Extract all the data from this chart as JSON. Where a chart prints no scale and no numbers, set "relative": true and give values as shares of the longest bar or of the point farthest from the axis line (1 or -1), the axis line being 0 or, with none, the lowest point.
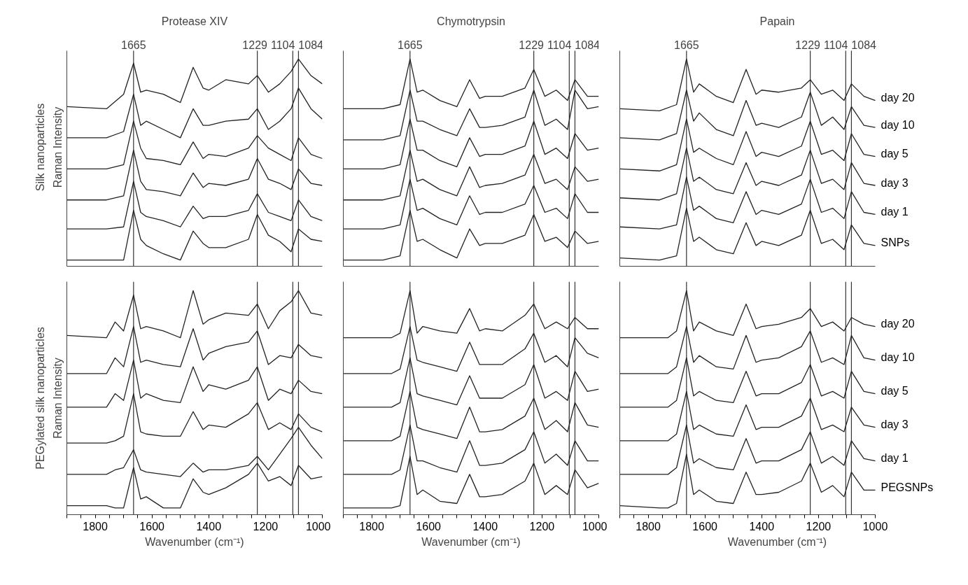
{
  "chart_data": [
    {
      "type": "line",
      "relative": true,
      "title": "Protease XIV",
      "ylabel": "Raman Intensity",
      "annotations": [
        "Silk nanoparticles"
      ],
      "xlim": [
        1900,
        1000
      ],
      "tick_labels": false,
      "line_style": "solid",
      "x": [
        1900,
        1760,
        1700,
        1665,
        1640,
        1620,
        1560,
        1500,
        1455,
        1420,
        1400,
        1340,
        1260,
        1229,
        1190,
        1150,
        1110,
        1084,
        1040,
        1000
      ],
      "ref_lines": [
        {
          "axis": "x",
          "value": 1665,
          "label": "1665"
        },
        {
          "axis": "x",
          "value": 1229,
          "label": "1229"
        },
        {
          "axis": "x",
          "value": 1104,
          "label": "1104"
        },
        {
          "axis": "x",
          "value": 1084,
          "label": "1084"
        }
      ],
      "series": [
        {
          "color": "#222222",
          "values": [
            0.77,
            0.76,
            0.83,
            0.98,
            0.84,
            0.85,
            0.83,
            0.79,
            0.96,
            0.86,
            0.85,
            0.9,
            0.88,
            0.92,
            0.84,
            0.88,
            0.94,
            1.0,
            0.92,
            0.88
          ]
        },
        {
          "color": "#222222",
          "values": [
            0.62,
            0.62,
            0.65,
            0.83,
            0.68,
            0.7,
            0.66,
            0.62,
            0.76,
            0.68,
            0.68,
            0.7,
            0.71,
            0.76,
            0.66,
            0.7,
            0.76,
            0.86,
            0.76,
            0.71
          ]
        },
        {
          "color": "#222222",
          "values": [
            0.47,
            0.47,
            0.49,
            0.7,
            0.57,
            0.52,
            0.51,
            0.49,
            0.6,
            0.52,
            0.54,
            0.53,
            0.57,
            0.63,
            0.57,
            0.54,
            0.51,
            0.62,
            0.54,
            0.52
          ]
        },
        {
          "color": "#222222",
          "values": [
            0.32,
            0.32,
            0.34,
            0.56,
            0.41,
            0.37,
            0.36,
            0.34,
            0.45,
            0.38,
            0.4,
            0.39,
            0.42,
            0.52,
            0.42,
            0.4,
            0.37,
            0.47,
            0.4,
            0.39
          ]
        },
        {
          "color": "#222222",
          "values": [
            0.18,
            0.18,
            0.19,
            0.41,
            0.26,
            0.24,
            0.22,
            0.19,
            0.29,
            0.23,
            0.24,
            0.24,
            0.27,
            0.35,
            0.26,
            0.24,
            0.22,
            0.32,
            0.24,
            0.22
          ]
        },
        {
          "color": "#222222",
          "values": [
            0.03,
            0.03,
            0.03,
            0.27,
            0.13,
            0.1,
            0.06,
            0.03,
            0.17,
            0.11,
            0.09,
            0.09,
            0.13,
            0.25,
            0.15,
            0.12,
            0.07,
            0.18,
            0.13,
            0.12
          ]
        }
      ]
    },
    {
      "type": "line",
      "relative": true,
      "title": "Chymotrypsin",
      "xlim": [
        1900,
        1000
      ],
      "tick_labels": false,
      "line_style": "solid",
      "x": [
        1900,
        1760,
        1700,
        1665,
        1640,
        1620,
        1560,
        1500,
        1455,
        1420,
        1400,
        1340,
        1260,
        1229,
        1190,
        1150,
        1110,
        1084,
        1040,
        1000
      ],
      "ref_lines": [
        {
          "axis": "x",
          "value": 1665,
          "label": "1665"
        },
        {
          "axis": "x",
          "value": 1229,
          "label": "1229"
        },
        {
          "axis": "x",
          "value": 1104,
          "label": "1104"
        },
        {
          "axis": "x",
          "value": 1084,
          "label": "1084"
        }
      ],
      "series": [
        {
          "color": "#222222",
          "values": [
            0.76,
            0.76,
            0.78,
            1.0,
            0.84,
            0.85,
            0.8,
            0.77,
            0.9,
            0.81,
            0.82,
            0.82,
            0.86,
            0.95,
            0.82,
            0.85,
            0.8,
            0.9,
            0.82,
            0.82
          ]
        },
        {
          "color": "#222222",
          "values": [
            0.61,
            0.61,
            0.63,
            0.85,
            0.7,
            0.7,
            0.66,
            0.63,
            0.76,
            0.67,
            0.67,
            0.68,
            0.72,
            0.85,
            0.68,
            0.71,
            0.66,
            0.85,
            0.76,
            0.77
          ]
        },
        {
          "color": "#222222",
          "values": [
            0.47,
            0.47,
            0.49,
            0.71,
            0.56,
            0.56,
            0.51,
            0.48,
            0.62,
            0.53,
            0.54,
            0.54,
            0.58,
            0.7,
            0.54,
            0.57,
            0.52,
            0.64,
            0.56,
            0.57
          ]
        },
        {
          "color": "#222222",
          "values": [
            0.32,
            0.32,
            0.34,
            0.56,
            0.41,
            0.42,
            0.37,
            0.34,
            0.48,
            0.38,
            0.39,
            0.4,
            0.44,
            0.54,
            0.4,
            0.42,
            0.37,
            0.48,
            0.41,
            0.42
          ]
        },
        {
          "color": "#222222",
          "values": [
            0.18,
            0.18,
            0.2,
            0.42,
            0.27,
            0.28,
            0.23,
            0.2,
            0.34,
            0.25,
            0.26,
            0.26,
            0.3,
            0.39,
            0.26,
            0.28,
            0.23,
            0.35,
            0.26,
            0.26
          ]
        },
        {
          "color": "#222222",
          "values": [
            0.03,
            0.03,
            0.05,
            0.27,
            0.12,
            0.13,
            0.08,
            0.04,
            0.18,
            0.1,
            0.11,
            0.11,
            0.15,
            0.25,
            0.12,
            0.14,
            0.09,
            0.17,
            0.11,
            0.12
          ]
        }
      ]
    },
    {
      "type": "line",
      "relative": true,
      "title": "Papain",
      "xlim": [
        1900,
        1000
      ],
      "tick_labels": false,
      "line_style": "solid",
      "x": [
        1900,
        1760,
        1700,
        1665,
        1640,
        1620,
        1560,
        1500,
        1455,
        1420,
        1400,
        1340,
        1260,
        1229,
        1190,
        1150,
        1110,
        1084,
        1040,
        1000
      ],
      "ref_lines": [
        {
          "axis": "x",
          "value": 1665,
          "label": "1665"
        },
        {
          "axis": "x",
          "value": 1229,
          "label": "1229"
        },
        {
          "axis": "x",
          "value": 1104,
          "label": "1104"
        },
        {
          "axis": "x",
          "value": 1084,
          "label": "1084"
        }
      ],
      "series": [
        {
          "name": "day 20",
          "color": "#222222",
          "values": [
            0.76,
            0.75,
            0.78,
            1.0,
            0.84,
            0.88,
            0.82,
            0.79,
            0.95,
            0.83,
            0.85,
            0.84,
            0.86,
            0.9,
            0.83,
            0.85,
            0.8,
            0.88,
            0.82,
            0.8
          ]
        },
        {
          "name": "day 10",
          "color": "#222222",
          "values": [
            0.62,
            0.61,
            0.64,
            0.85,
            0.7,
            0.74,
            0.66,
            0.63,
            0.8,
            0.68,
            0.69,
            0.67,
            0.72,
            0.84,
            0.68,
            0.72,
            0.66,
            0.77,
            0.68,
            0.67
          ]
        },
        {
          "name": "day 5",
          "color": "#222222",
          "values": [
            0.47,
            0.46,
            0.49,
            0.71,
            0.55,
            0.57,
            0.52,
            0.49,
            0.65,
            0.53,
            0.55,
            0.53,
            0.58,
            0.7,
            0.54,
            0.56,
            0.51,
            0.64,
            0.54,
            0.53
          ]
        },
        {
          "name": "day 3",
          "color": "#222222",
          "values": [
            0.33,
            0.32,
            0.35,
            0.57,
            0.41,
            0.43,
            0.37,
            0.35,
            0.5,
            0.39,
            0.41,
            0.39,
            0.44,
            0.56,
            0.4,
            0.42,
            0.37,
            0.5,
            0.4,
            0.39
          ]
        },
        {
          "name": "day 1",
          "color": "#222222",
          "values": [
            0.19,
            0.18,
            0.2,
            0.43,
            0.27,
            0.29,
            0.23,
            0.21,
            0.36,
            0.25,
            0.27,
            0.25,
            0.3,
            0.42,
            0.26,
            0.28,
            0.23,
            0.36,
            0.26,
            0.25
          ]
        },
        {
          "name": "SNPs",
          "color": "#222222",
          "values": [
            0.04,
            0.03,
            0.05,
            0.28,
            0.12,
            0.14,
            0.08,
            0.06,
            0.21,
            0.1,
            0.12,
            0.1,
            0.15,
            0.27,
            0.11,
            0.13,
            0.08,
            0.2,
            0.11,
            0.1
          ]
        }
      ]
    },
    {
      "type": "line",
      "relative": true,
      "ylabel": "Raman Intensity",
      "xlabel": "Wavenumber (cm⁻¹)",
      "annotations": [
        "PEGylated silk nanoparticles"
      ],
      "xlim": [
        1900,
        1000
      ],
      "tick_labels": "x",
      "line_style": "solid",
      "xticks": [
        {
          "value": 1900,
          "label": null
        },
        {
          "value": 1850,
          "label": null
        },
        1800,
        {
          "value": 1750,
          "label": null
        },
        {
          "value": 1700,
          "label": null
        },
        {
          "value": 1650,
          "label": null
        },
        1600,
        {
          "value": 1550,
          "label": null
        },
        {
          "value": 1500,
          "label": null
        },
        {
          "value": 1450,
          "label": null
        },
        1400,
        {
          "value": 1350,
          "label": null
        },
        {
          "value": 1300,
          "label": null
        },
        {
          "value": 1250,
          "label": null
        },
        1200,
        {
          "value": 1150,
          "label": null
        },
        {
          "value": 1100,
          "label": null
        },
        {
          "value": 1050,
          "label": null
        },
        1000
      ],
      "x": [
        1900,
        1760,
        1730,
        1700,
        1665,
        1640,
        1620,
        1560,
        1500,
        1455,
        1420,
        1400,
        1340,
        1260,
        1229,
        1190,
        1150,
        1110,
        1084,
        1040,
        1000
      ],
      "ref_lines": [
        {
          "axis": "x",
          "value": 1665,
          "label": null
        },
        {
          "axis": "x",
          "value": 1229,
          "label": null
        },
        {
          "axis": "x",
          "value": 1104,
          "label": null
        },
        {
          "axis": "x",
          "value": 1084,
          "label": null
        }
      ],
      "series": [
        {
          "color": "#222222",
          "values": [
            0.8,
            0.79,
            0.86,
            0.82,
            0.98,
            0.83,
            0.84,
            0.82,
            0.79,
            1.0,
            0.85,
            0.87,
            0.9,
            0.89,
            0.94,
            0.83,
            0.91,
            0.95,
            1.0,
            0.9,
            0.89
          ]
        },
        {
          "color": "#222222",
          "values": [
            0.63,
            0.63,
            0.7,
            0.66,
            0.84,
            0.68,
            0.69,
            0.67,
            0.66,
            0.83,
            0.69,
            0.72,
            0.75,
            0.77,
            0.82,
            0.67,
            0.71,
            0.7,
            0.76,
            0.71,
            0.7
          ]
        },
        {
          "color": "#222222",
          "values": [
            0.48,
            0.48,
            0.54,
            0.51,
            0.69,
            0.52,
            0.54,
            0.51,
            0.5,
            0.66,
            0.55,
            0.58,
            0.56,
            0.6,
            0.66,
            0.51,
            0.56,
            0.54,
            0.6,
            0.55,
            0.54
          ]
        },
        {
          "color": "#222222",
          "values": [
            0.32,
            0.32,
            0.33,
            0.35,
            0.54,
            0.37,
            0.36,
            0.35,
            0.35,
            0.46,
            0.38,
            0.4,
            0.39,
            0.45,
            0.5,
            0.38,
            0.41,
            0.38,
            0.45,
            0.39,
            0.37
          ]
        },
        {
          "color": "#222222",
          "values": [
            0.18,
            0.18,
            0.2,
            0.21,
            0.29,
            0.2,
            0.19,
            0.18,
            0.17,
            0.23,
            0.19,
            0.2,
            0.2,
            0.22,
            0.26,
            0.2,
            0.27,
            0.34,
            0.39,
            0.31,
            0.25
          ]
        },
        {
          "color": "#222222",
          "values": [
            0.04,
            0.04,
            0.03,
            0.03,
            0.21,
            0.07,
            0.08,
            0.03,
            0.03,
            0.16,
            0.1,
            0.09,
            0.12,
            0.18,
            0.23,
            0.15,
            0.17,
            0.13,
            0.22,
            0.16,
            0.17
          ]
        }
      ]
    },
    {
      "type": "line",
      "relative": true,
      "xlabel": "Wavenumber (cm⁻¹)",
      "xlim": [
        1900,
        1000
      ],
      "tick_labels": "x",
      "line_style": "solid",
      "xticks": [
        {
          "value": 1900,
          "label": null
        },
        {
          "value": 1850,
          "label": null
        },
        1800,
        {
          "value": 1750,
          "label": null
        },
        {
          "value": 1700,
          "label": null
        },
        {
          "value": 1650,
          "label": null
        },
        1600,
        {
          "value": 1550,
          "label": null
        },
        {
          "value": 1500,
          "label": null
        },
        {
          "value": 1450,
          "label": null
        },
        1400,
        {
          "value": 1350,
          "label": null
        },
        {
          "value": 1300,
          "label": null
        },
        {
          "value": 1250,
          "label": null
        },
        1200,
        {
          "value": 1150,
          "label": null
        },
        {
          "value": 1100,
          "label": null
        },
        {
          "value": 1050,
          "label": null
        },
        1000
      ],
      "x": [
        1900,
        1760,
        1730,
        1700,
        1665,
        1640,
        1620,
        1560,
        1500,
        1455,
        1420,
        1400,
        1340,
        1260,
        1229,
        1190,
        1150,
        1110,
        1084,
        1040,
        1000
      ],
      "ref_lines": [
        {
          "axis": "x",
          "value": 1665,
          "label": null
        },
        {
          "axis": "x",
          "value": 1229,
          "label": null
        },
        {
          "axis": "x",
          "value": 1104,
          "label": null
        },
        {
          "axis": "x",
          "value": 1084,
          "label": null
        }
      ],
      "series": [
        {
          "color": "#222222",
          "values": [
            0.79,
            0.79,
            0.79,
            0.81,
            1.0,
            0.81,
            0.84,
            0.82,
            0.81,
            0.92,
            0.82,
            0.83,
            0.82,
            0.89,
            0.94,
            0.83,
            0.86,
            0.83,
            0.88,
            0.83,
            0.83
          ]
        },
        {
          "color": "#222222",
          "values": [
            0.63,
            0.63,
            0.63,
            0.65,
            0.84,
            0.69,
            0.68,
            0.66,
            0.64,
            0.77,
            0.67,
            0.67,
            0.67,
            0.74,
            0.81,
            0.68,
            0.71,
            0.66,
            0.79,
            0.72,
            0.7
          ]
        },
        {
          "color": "#222222",
          "values": [
            0.48,
            0.48,
            0.48,
            0.5,
            0.7,
            0.54,
            0.53,
            0.51,
            0.49,
            0.62,
            0.52,
            0.52,
            0.52,
            0.58,
            0.67,
            0.52,
            0.55,
            0.51,
            0.64,
            0.55,
            0.56
          ]
        },
        {
          "color": "#222222",
          "values": [
            0.33,
            0.33,
            0.33,
            0.35,
            0.55,
            0.39,
            0.38,
            0.36,
            0.34,
            0.48,
            0.37,
            0.37,
            0.38,
            0.44,
            0.52,
            0.38,
            0.42,
            0.37,
            0.5,
            0.4,
            0.39
          ]
        },
        {
          "color": "#222222",
          "values": [
            0.18,
            0.18,
            0.18,
            0.2,
            0.4,
            0.24,
            0.24,
            0.21,
            0.19,
            0.33,
            0.22,
            0.22,
            0.23,
            0.29,
            0.37,
            0.23,
            0.27,
            0.22,
            0.33,
            0.24,
            0.24
          ]
        },
        {
          "color": "#222222",
          "values": [
            0.03,
            0.03,
            0.03,
            0.04,
            0.26,
            0.09,
            0.11,
            0.06,
            0.05,
            0.18,
            0.08,
            0.08,
            0.09,
            0.15,
            0.23,
            0.09,
            0.13,
            0.09,
            0.2,
            0.12,
            0.14
          ]
        }
      ]
    },
    {
      "type": "line",
      "relative": true,
      "xlabel": "Wavenumber (cm⁻¹)",
      "xlim": [
        1900,
        1000
      ],
      "tick_labels": "x",
      "line_style": "solid",
      "xticks": [
        {
          "value": 1900,
          "label": null
        },
        {
          "value": 1850,
          "label": null
        },
        1800,
        {
          "value": 1750,
          "label": null
        },
        {
          "value": 1700,
          "label": null
        },
        {
          "value": 1650,
          "label": null
        },
        1600,
        {
          "value": 1550,
          "label": null
        },
        {
          "value": 1500,
          "label": null
        },
        {
          "value": 1450,
          "label": null
        },
        1400,
        {
          "value": 1350,
          "label": null
        },
        {
          "value": 1300,
          "label": null
        },
        {
          "value": 1250,
          "label": null
        },
        1200,
        {
          "value": 1150,
          "label": null
        },
        {
          "value": 1100,
          "label": null
        },
        {
          "value": 1050,
          "label": null
        },
        1000
      ],
      "x": [
        1900,
        1760,
        1730,
        1700,
        1665,
        1640,
        1620,
        1560,
        1500,
        1455,
        1420,
        1400,
        1340,
        1260,
        1229,
        1190,
        1150,
        1110,
        1084,
        1040,
        1000
      ],
      "ref_lines": [
        {
          "axis": "x",
          "value": 1665,
          "label": null
        },
        {
          "axis": "x",
          "value": 1229,
          "label": null
        },
        {
          "axis": "x",
          "value": 1104,
          "label": null
        },
        {
          "axis": "x",
          "value": 1084,
          "label": null
        }
      ],
      "series": [
        {
          "name": "day 20",
          "color": "#222222",
          "values": [
            0.79,
            0.79,
            0.79,
            0.82,
            1.0,
            0.82,
            0.86,
            0.82,
            0.8,
            0.94,
            0.83,
            0.84,
            0.85,
            0.88,
            0.92,
            0.84,
            0.86,
            0.82,
            0.88,
            0.85,
            0.84
          ]
        },
        {
          "name": "day 10",
          "color": "#222222",
          "values": [
            0.63,
            0.63,
            0.63,
            0.66,
            0.84,
            0.68,
            0.71,
            0.66,
            0.65,
            0.8,
            0.68,
            0.69,
            0.7,
            0.75,
            0.82,
            0.68,
            0.7,
            0.67,
            0.8,
            0.7,
            0.69
          ]
        },
        {
          "name": "day 5",
          "color": "#222222",
          "values": [
            0.48,
            0.48,
            0.48,
            0.51,
            0.7,
            0.53,
            0.55,
            0.51,
            0.5,
            0.64,
            0.53,
            0.54,
            0.54,
            0.59,
            0.67,
            0.53,
            0.55,
            0.52,
            0.64,
            0.55,
            0.54
          ]
        },
        {
          "name": "day 3",
          "color": "#222222",
          "values": [
            0.33,
            0.33,
            0.33,
            0.36,
            0.55,
            0.38,
            0.4,
            0.36,
            0.35,
            0.49,
            0.38,
            0.39,
            0.39,
            0.44,
            0.52,
            0.38,
            0.4,
            0.37,
            0.48,
            0.4,
            0.39
          ]
        },
        {
          "name": "day 1",
          "color": "#222222",
          "values": [
            0.18,
            0.18,
            0.18,
            0.21,
            0.4,
            0.23,
            0.25,
            0.21,
            0.2,
            0.34,
            0.23,
            0.24,
            0.24,
            0.29,
            0.37,
            0.23,
            0.26,
            0.22,
            0.33,
            0.25,
            0.24
          ]
        },
        {
          "name": "PEGSNPs",
          "color": "#222222",
          "values": [
            0.04,
            0.03,
            0.03,
            0.05,
            0.27,
            0.09,
            0.11,
            0.06,
            0.05,
            0.19,
            0.09,
            0.09,
            0.1,
            0.15,
            0.23,
            0.1,
            0.13,
            0.08,
            0.19,
            0.11,
            0.11
          ]
        }
      ]
    }
  ]
}
